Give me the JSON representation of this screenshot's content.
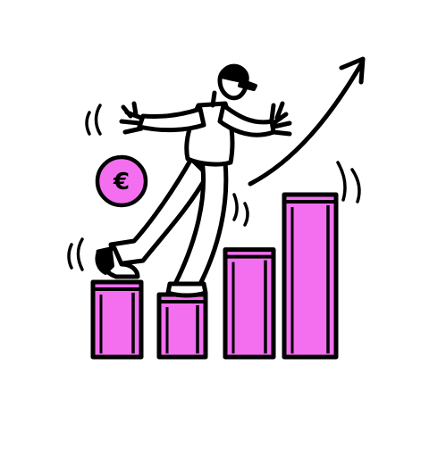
{
  "illustration": {
    "coin_symbol": "€",
    "icons": {
      "coin": "euro-coin-icon",
      "arrow": "trend-up-arrow-icon",
      "person": "balancing-person-icon"
    }
  },
  "colors": {
    "background": "#ffffff",
    "ink": "#000000",
    "bar_fill": "#f46ff0",
    "bar_shade": "#e24ee0",
    "coin_fill": "#f46ff0"
  },
  "chart_data": {
    "type": "bar",
    "categories": [
      "",
      "",
      "",
      ""
    ],
    "values": [
      3,
      2.5,
      4.3,
      6.5
    ],
    "title": "",
    "xlabel": "",
    "ylabel": "",
    "grid": false,
    "trend": "up"
  }
}
